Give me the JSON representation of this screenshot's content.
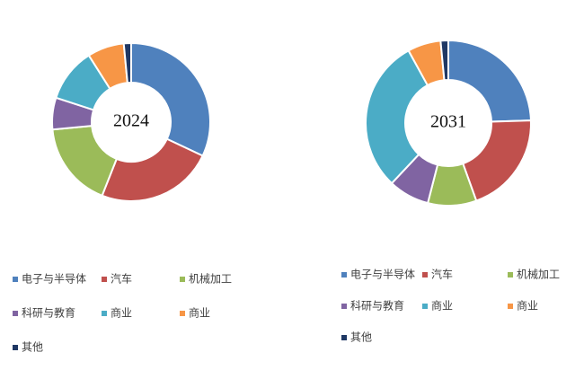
{
  "chart_data": [
    {
      "type": "donut",
      "center_label": "2024",
      "categories": [
        "电子与半导体",
        "汽车",
        "机械加工",
        "科研与教育",
        "商业",
        "商业",
        "其他"
      ],
      "values": [
        32,
        24,
        17.5,
        6.5,
        11,
        7.5,
        1.5
      ],
      "colors": [
        "#4f81bd",
        "#c0504d",
        "#9bbb59",
        "#8064a2",
        "#4bacc6",
        "#f79646",
        "#1f3864"
      ]
    },
    {
      "type": "donut",
      "center_label": "2031",
      "categories": [
        "电子与半导体",
        "汽车",
        "机械加工",
        "科研与教育",
        "商业",
        "商业",
        "其他"
      ],
      "values": [
        24.5,
        20,
        9.5,
        8,
        30,
        6.5,
        1.5
      ],
      "colors": [
        "#4f81bd",
        "#c0504d",
        "#9bbb59",
        "#8064a2",
        "#4bacc6",
        "#f79646",
        "#1f3864"
      ]
    }
  ]
}
